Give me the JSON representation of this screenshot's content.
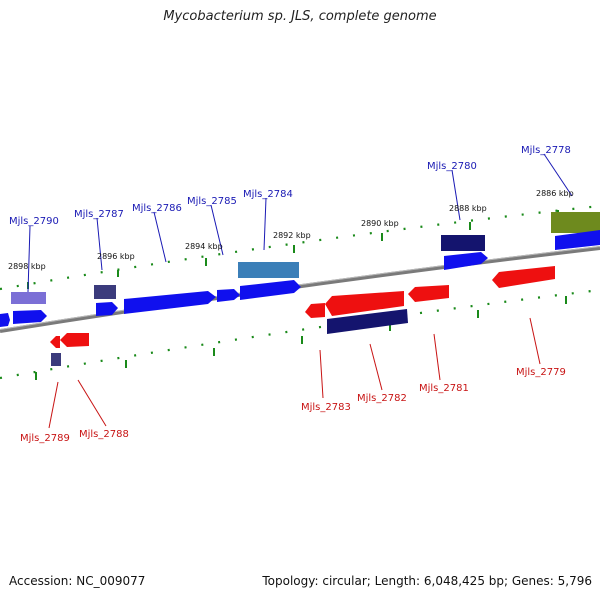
{
  "title": "Mycobacterium sp. JLS, complete genome",
  "footer": {
    "accession": "Accession: NC_009077",
    "topology": "Topology: circular; Length: 6,048,425 bp; Genes: 5,796"
  },
  "colors": {
    "forward_gene": "#1010ee",
    "reverse_gene": "#ee1010",
    "label_forward": "#1a1ab4",
    "label_reverse": "#c81414",
    "axis": "#808080",
    "tick": "#1a8a1a"
  },
  "scale_labels": [
    "2898 kbp",
    "2896 kbp",
    "2894 kbp",
    "2892 kbp",
    "2890 kbp",
    "2888 kbp",
    "2886 kbp"
  ],
  "gene_labels_top": [
    "Mjls_2790",
    "Mjls_2787",
    "Mjls_2786",
    "Mjls_2785",
    "Mjls_2784",
    "Mjls_2780",
    "Mjls_2778"
  ],
  "gene_labels_bottom": [
    "Mjls_2789",
    "Mjls_2788",
    "Mjls_2783",
    "Mjls_2782",
    "Mjls_2781",
    "Mjls_2779"
  ]
}
